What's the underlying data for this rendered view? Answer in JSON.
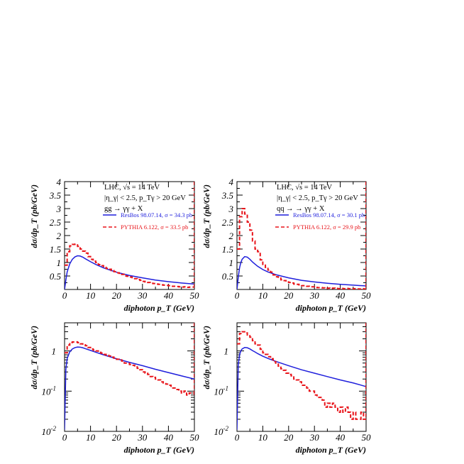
{
  "chart_data": [
    {
      "type": "line",
      "scale": "linear",
      "xlabel": "diphoton p_T (GeV)",
      "ylabel": "dσ/dp_T (pb/GeV)",
      "xlim": [
        0,
        50
      ],
      "ylim": [
        0,
        4
      ],
      "xticks": [
        0,
        10,
        20,
        30,
        40,
        50
      ],
      "yticks": [
        0.5,
        1,
        1.5,
        2,
        2.5,
        3,
        3.5,
        4
      ],
      "annotations": [
        "LHC, √s = 14 TeV",
        "|η_γ| < 2.5, p_Tγ > 20 GeV",
        "gg → γγ + X"
      ],
      "series": [
        {
          "name": "ResBos 98.07.14, σ = 34.3 pb",
          "style": "solid",
          "color": "#1f1fdc",
          "x": [
            0,
            0.5,
            1,
            2,
            3,
            4,
            5,
            6,
            7,
            8,
            10,
            12,
            15,
            20,
            25,
            30,
            35,
            40,
            45,
            50
          ],
          "y": [
            0,
            0.35,
            0.65,
            0.95,
            1.12,
            1.21,
            1.25,
            1.24,
            1.2,
            1.14,
            1.03,
            0.93,
            0.8,
            0.64,
            0.52,
            0.43,
            0.35,
            0.29,
            0.24,
            0.2
          ]
        },
        {
          "name": "PYTHIA 6.122, σ = 33.5 pb",
          "style": "dashed-step",
          "color": "#e8141a",
          "x": [
            0,
            1,
            2,
            3,
            4,
            5,
            6,
            7,
            8,
            9,
            10,
            11,
            12,
            13,
            14,
            15,
            16,
            17,
            18,
            19,
            20,
            21,
            22,
            23,
            24,
            25,
            26,
            27,
            28,
            29,
            30,
            31,
            32,
            33,
            34,
            35,
            36,
            37,
            38,
            39,
            40,
            41,
            42,
            43,
            44,
            45,
            46,
            47,
            48,
            49,
            50
          ],
          "y": [
            0.9,
            1.4,
            1.62,
            1.67,
            1.68,
            1.6,
            1.5,
            1.42,
            1.35,
            1.22,
            1.12,
            1.05,
            1.0,
            0.92,
            0.88,
            0.82,
            0.78,
            0.75,
            0.7,
            0.66,
            0.62,
            0.6,
            0.56,
            0.5,
            0.49,
            0.46,
            0.44,
            0.4,
            0.37,
            0.34,
            0.3,
            0.28,
            0.26,
            0.23,
            0.22,
            0.2,
            0.19,
            0.17,
            0.16,
            0.15,
            0.14,
            0.12,
            0.12,
            0.11,
            0.1,
            0.09,
            0.1,
            0.08,
            0.09,
            0.09,
            0.08
          ]
        }
      ]
    },
    {
      "type": "line",
      "scale": "linear",
      "xlabel": "diphoton p_T (GeV)",
      "ylabel": "dσ/dp_T (pb/GeV)",
      "xlim": [
        0,
        50
      ],
      "ylim": [
        0,
        4
      ],
      "xticks": [
        0,
        10,
        20,
        30,
        40,
        50
      ],
      "yticks": [
        0.5,
        1,
        1.5,
        2,
        2.5,
        3,
        3.5,
        4
      ],
      "annotations": [
        "LHC, √s = 14 TeV",
        "|η_γ| < 2.5, p_Tγ > 20 GeV",
        "qq → → γγ + X"
      ],
      "series": [
        {
          "name": "ResBos 98.07.14, σ = 30.1 pb",
          "style": "solid",
          "color": "#1f1fdc",
          "x": [
            0,
            0.5,
            1,
            1.5,
            2,
            3,
            4,
            5,
            6,
            7,
            8,
            10,
            12,
            15,
            20,
            25,
            30,
            35,
            40,
            45,
            50
          ],
          "y": [
            0,
            0.45,
            0.8,
            1.0,
            1.12,
            1.22,
            1.2,
            1.12,
            1.02,
            0.94,
            0.86,
            0.74,
            0.65,
            0.55,
            0.43,
            0.34,
            0.28,
            0.23,
            0.19,
            0.16,
            0.13
          ]
        },
        {
          "name": "PYTHIA 6.122, σ = 29.9 pb",
          "style": "dashed-step",
          "color": "#e8141a",
          "x": [
            0,
            1,
            2,
            3,
            4,
            5,
            6,
            7,
            8,
            9,
            10,
            11,
            12,
            13,
            14,
            15,
            16,
            17,
            18,
            19,
            20,
            21,
            22,
            23,
            24,
            25,
            26,
            27,
            28,
            29,
            30,
            31,
            32,
            33,
            34,
            35,
            36,
            37,
            38,
            39,
            40,
            41,
            42,
            43,
            44,
            45,
            46,
            47,
            48,
            49,
            50
          ],
          "y": [
            1.5,
            2.7,
            3.0,
            2.8,
            2.5,
            2.2,
            1.8,
            1.5,
            1.4,
            1.1,
            0.9,
            0.82,
            0.72,
            0.64,
            0.54,
            0.47,
            0.42,
            0.36,
            0.33,
            0.28,
            0.26,
            0.24,
            0.2,
            0.19,
            0.17,
            0.14,
            0.14,
            0.12,
            0.1,
            0.1,
            0.08,
            0.07,
            0.07,
            0.06,
            0.04,
            0.05,
            0.04,
            0.05,
            0.04,
            0.03,
            0.04,
            0.03,
            0.04,
            0.03,
            0.02,
            0.03,
            0.02,
            0.02,
            0.03,
            0.02,
            0.02
          ]
        }
      ]
    },
    {
      "type": "line",
      "scale": "log",
      "xlabel": "diphoton p_T (GeV)",
      "ylabel": "dσ/dp_T (pb/GeV)",
      "xlim": [
        0,
        50
      ],
      "ylim": [
        0.01,
        5
      ],
      "xticks": [
        0,
        10,
        20,
        30,
        40,
        50
      ],
      "yticks": [
        {
          "value": 1,
          "base": "1",
          "exp": ""
        },
        {
          "value": 0.1,
          "base": "10",
          "exp": "-1"
        },
        {
          "value": 0.01,
          "base": "10",
          "exp": "-2"
        }
      ],
      "series": [
        {
          "name": "ResBos",
          "style": "solid",
          "color": "#1f1fdc",
          "x": [
            0,
            0.5,
            1,
            2,
            3,
            4,
            5,
            6,
            7,
            8,
            10,
            12,
            15,
            20,
            25,
            30,
            35,
            40,
            45,
            50
          ],
          "y": [
            0.011,
            0.35,
            0.65,
            0.95,
            1.12,
            1.21,
            1.25,
            1.24,
            1.2,
            1.14,
            1.03,
            0.93,
            0.8,
            0.64,
            0.52,
            0.43,
            0.35,
            0.29,
            0.24,
            0.2
          ]
        },
        {
          "name": "PYTHIA",
          "style": "dashed-step",
          "color": "#e8141a",
          "x": [
            0,
            1,
            2,
            3,
            4,
            5,
            6,
            7,
            8,
            9,
            10,
            11,
            12,
            13,
            14,
            15,
            16,
            17,
            18,
            19,
            20,
            21,
            22,
            23,
            24,
            25,
            26,
            27,
            28,
            29,
            30,
            31,
            32,
            33,
            34,
            35,
            36,
            37,
            38,
            39,
            40,
            41,
            42,
            43,
            44,
            45,
            46,
            47,
            48,
            49,
            50
          ],
          "y": [
            0.9,
            1.4,
            1.62,
            1.67,
            1.68,
            1.6,
            1.5,
            1.42,
            1.35,
            1.22,
            1.12,
            1.05,
            1.0,
            0.92,
            0.88,
            0.82,
            0.78,
            0.75,
            0.7,
            0.66,
            0.62,
            0.6,
            0.56,
            0.5,
            0.49,
            0.46,
            0.44,
            0.4,
            0.37,
            0.34,
            0.3,
            0.28,
            0.26,
            0.23,
            0.22,
            0.2,
            0.19,
            0.17,
            0.16,
            0.15,
            0.14,
            0.12,
            0.12,
            0.11,
            0.1,
            0.09,
            0.1,
            0.08,
            0.09,
            0.09,
            0.08
          ]
        }
      ]
    },
    {
      "type": "line",
      "scale": "log",
      "xlabel": "diphoton p_T (GeV)",
      "ylabel": "dσ/dp_T (pb/GeV)",
      "xlim": [
        0,
        50
      ],
      "ylim": [
        0.01,
        5
      ],
      "xticks": [
        0,
        10,
        20,
        30,
        40,
        50
      ],
      "yticks": [
        {
          "value": 1,
          "base": "1",
          "exp": ""
        },
        {
          "value": 0.1,
          "base": "10",
          "exp": "-1"
        },
        {
          "value": 0.01,
          "base": "10",
          "exp": "-2"
        }
      ],
      "series": [
        {
          "name": "ResBos",
          "style": "solid",
          "color": "#1f1fdc",
          "x": [
            0,
            0.5,
            1,
            1.5,
            2,
            3,
            4,
            5,
            6,
            7,
            8,
            10,
            12,
            15,
            20,
            25,
            30,
            35,
            40,
            45,
            50
          ],
          "y": [
            0.011,
            0.45,
            0.8,
            1.0,
            1.12,
            1.22,
            1.2,
            1.12,
            1.02,
            0.94,
            0.86,
            0.74,
            0.65,
            0.55,
            0.43,
            0.34,
            0.28,
            0.23,
            0.19,
            0.16,
            0.13
          ]
        },
        {
          "name": "PYTHIA",
          "style": "dashed-step",
          "color": "#e8141a",
          "x": [
            0,
            1,
            2,
            3,
            4,
            5,
            6,
            7,
            8,
            9,
            10,
            11,
            12,
            13,
            14,
            15,
            16,
            17,
            18,
            19,
            20,
            21,
            22,
            23,
            24,
            25,
            26,
            27,
            28,
            29,
            30,
            31,
            32,
            33,
            34,
            35,
            36,
            37,
            38,
            39,
            40,
            41,
            42,
            43,
            44,
            45,
            46,
            47,
            48,
            49,
            50
          ],
          "y": [
            1.5,
            2.7,
            3.0,
            2.8,
            2.5,
            2.2,
            1.8,
            1.5,
            1.4,
            1.1,
            0.9,
            0.82,
            0.72,
            0.64,
            0.54,
            0.47,
            0.42,
            0.36,
            0.33,
            0.28,
            0.26,
            0.24,
            0.2,
            0.19,
            0.17,
            0.14,
            0.14,
            0.12,
            0.1,
            0.1,
            0.08,
            0.07,
            0.07,
            0.06,
            0.04,
            0.05,
            0.04,
            0.05,
            0.04,
            0.03,
            0.04,
            0.03,
            0.04,
            0.03,
            0.02,
            0.03,
            0.02,
            0.02,
            0.03,
            0.02,
            0.02
          ]
        }
      ]
    }
  ]
}
